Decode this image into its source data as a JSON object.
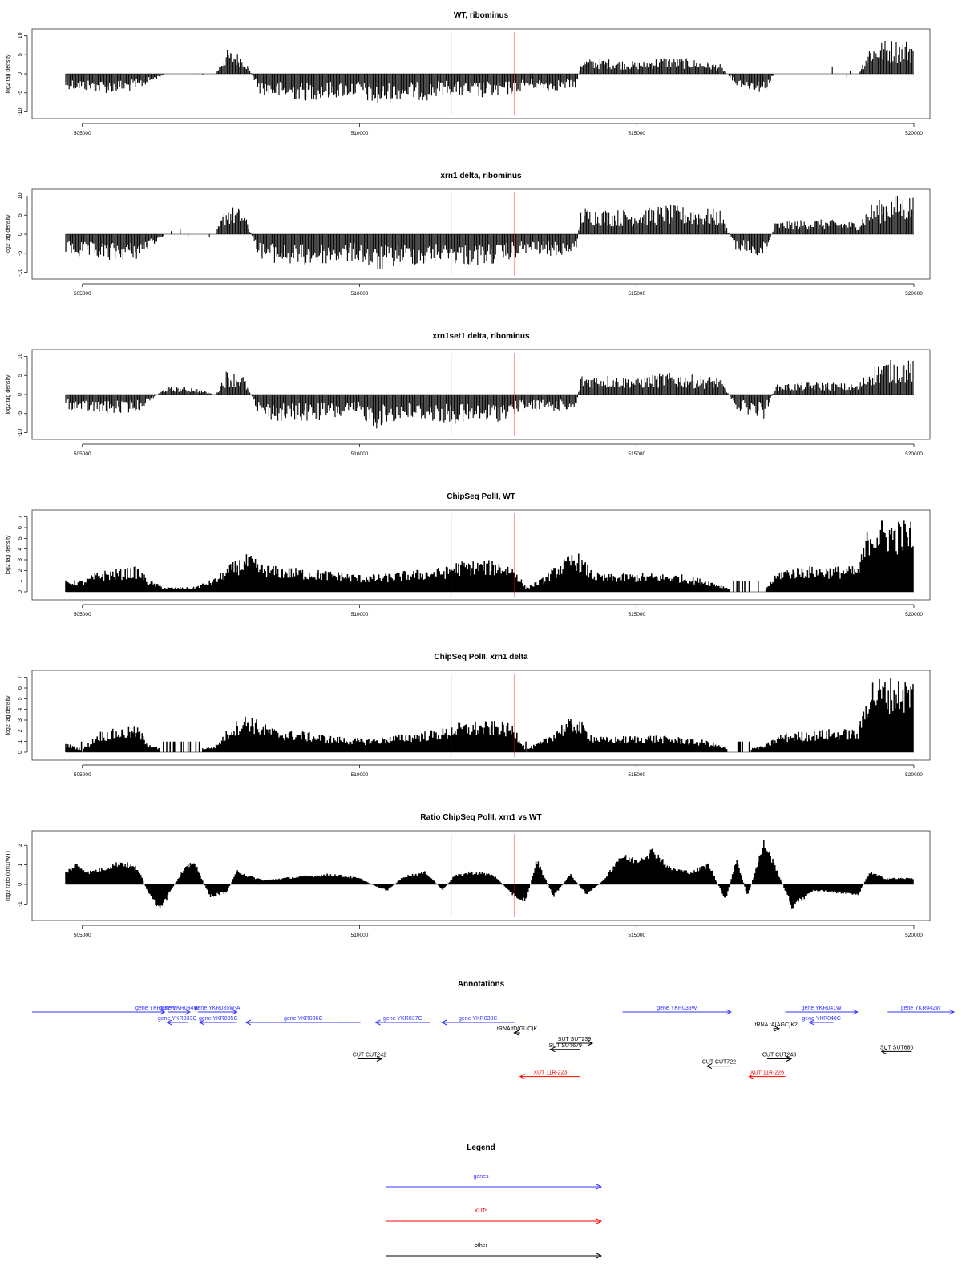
{
  "chart_data": [
    {
      "type": "area",
      "title": "WT, ribominus",
      "ylabel": "log2 tag density",
      "xlabel": "",
      "xlim": [
        504700,
        520000
      ],
      "ylim": [
        -10.5,
        10.5
      ],
      "yticks": [
        -10,
        -5,
        0,
        5,
        10
      ],
      "xticks": [
        505000,
        510000,
        515000,
        520000
      ],
      "vlines": [
        511650,
        512800
      ],
      "series": [
        {
          "x": [
            504700,
            505000,
            505500,
            506000,
            506050,
            506500,
            507000,
            507400,
            507600,
            507900,
            508200,
            508500,
            509000,
            509500,
            510000,
            510300,
            510500,
            510800,
            511200,
            511600,
            511700,
            512000,
            512500,
            512800,
            513000,
            513500,
            513900,
            514000,
            514500,
            515000,
            515500,
            516000,
            516500,
            516800,
            517000,
            517300,
            517500,
            518000,
            518500,
            519000,
            519200,
            519500,
            519700
          ],
          "y": [
            -3,
            -3.5,
            -4,
            -3.5,
            -3,
            0,
            0,
            0,
            5,
            4,
            -4,
            -5,
            -5.5,
            -5,
            -4.5,
            -7,
            -6,
            -5,
            -5.5,
            -4,
            -4.5,
            -5,
            -5,
            -4,
            -3,
            -3.5,
            -3,
            3,
            3,
            2.5,
            3.5,
            3,
            2,
            -2.5,
            -3,
            -4,
            0,
            0,
            0,
            0,
            6,
            7,
            7
          ]
        }
      ]
    },
    {
      "type": "area",
      "title": "xrn1 delta, ribominus",
      "ylabel": "log2 tag density",
      "xlabel": "",
      "xlim": [
        504700,
        520000
      ],
      "ylim": [
        -10.5,
        10.5
      ],
      "yticks": [
        -10,
        -5,
        0,
        5,
        10
      ],
      "xticks": [
        505000,
        510000,
        515000,
        520000
      ],
      "vlines": [
        511650,
        512800
      ],
      "series": [
        {
          "x": [
            504700,
            505000,
            505500,
            506000,
            506050,
            506500,
            507000,
            507400,
            507600,
            507900,
            508200,
            508500,
            509000,
            509500,
            510000,
            510300,
            510500,
            510800,
            511200,
            511600,
            511700,
            512000,
            512500,
            512800,
            513000,
            513500,
            513900,
            514000,
            514500,
            515000,
            515500,
            516000,
            516500,
            516800,
            517000,
            517300,
            517500,
            518000,
            518500,
            519000,
            519200,
            519500,
            519700
          ],
          "y": [
            -4,
            -5,
            -5.5,
            -5,
            -4.5,
            0,
            0,
            0,
            6,
            5,
            -5,
            -6,
            -6.5,
            -6,
            -5.5,
            -8,
            -7,
            -6,
            -6.5,
            -5,
            -6,
            -6.5,
            -6,
            -5,
            -4,
            -4.5,
            -4,
            5.5,
            5,
            5,
            6,
            5.5,
            5,
            -3.5,
            -4,
            -5,
            2.5,
            3,
            3,
            2.5,
            6,
            7.5,
            8
          ]
        }
      ]
    },
    {
      "type": "area",
      "title": "xrn1set1 delta, ribominus",
      "ylabel": "log2 tag density",
      "xlabel": "",
      "xlim": [
        504700,
        520000
      ],
      "ylim": [
        -10.5,
        10.5
      ],
      "yticks": [
        -10,
        -5,
        0,
        5,
        10
      ],
      "xticks": [
        505000,
        510000,
        515000,
        520000
      ],
      "vlines": [
        511650,
        512800
      ],
      "series": [
        {
          "x": [
            504700,
            505000,
            505500,
            506000,
            506050,
            506500,
            507000,
            507400,
            507600,
            507900,
            508200,
            508500,
            509000,
            509500,
            510000,
            510300,
            510500,
            510800,
            511200,
            511600,
            511700,
            512000,
            512500,
            512800,
            513000,
            513500,
            513900,
            514000,
            514500,
            515000,
            515500,
            516000,
            516500,
            516800,
            517000,
            517300,
            517500,
            518000,
            518500,
            519000,
            519200,
            519500,
            519700
          ],
          "y": [
            -3,
            -3.5,
            -4,
            -3.5,
            -3,
            1.5,
            1.5,
            0,
            5,
            4,
            -4.5,
            -5.5,
            -5.5,
            -5,
            -4.5,
            -7,
            -6,
            -5,
            -5.5,
            -6,
            -6,
            -6,
            -5.5,
            -4,
            -3,
            -3.5,
            -3,
            4,
            4,
            3.5,
            4.5,
            4,
            3.5,
            -3,
            -4,
            -5,
            2,
            2.5,
            2.5,
            2,
            5.5,
            7,
            7
          ]
        }
      ]
    },
    {
      "type": "area",
      "title": "ChipSeq PolII, WT",
      "ylabel": "log2 tag density",
      "xlabel": "",
      "xlim": [
        504700,
        520000
      ],
      "ylim": [
        -0.3,
        7.2
      ],
      "yticks": [
        0,
        1,
        2,
        3,
        4,
        5,
        6,
        7
      ],
      "xticks": [
        505000,
        510000,
        515000,
        520000
      ],
      "vlines": [
        511650,
        512800
      ],
      "series": [
        {
          "x": [
            504700,
            505000,
            505300,
            505700,
            506000,
            506200,
            506500,
            507000,
            507400,
            507700,
            508000,
            508200,
            508500,
            509000,
            509500,
            510000,
            510400,
            510800,
            511300,
            511600,
            511700,
            512000,
            512500,
            512800,
            513000,
            513300,
            513600,
            513900,
            514200,
            514400,
            514800,
            515300,
            515800,
            516300,
            516700,
            517000,
            517300,
            517600,
            518000,
            518500,
            519000,
            519200,
            519500,
            519700
          ],
          "y": [
            1,
            1,
            1.8,
            2,
            2.2,
            1,
            0.4,
            0.4,
            1.2,
            2.5,
            3.3,
            2.5,
            2.2,
            2,
            1.8,
            1.5,
            1.5,
            1.8,
            2,
            2.2,
            2.6,
            2.7,
            2.7,
            2.2,
            0.4,
            1.2,
            2.5,
            3.6,
            1.8,
            1.5,
            1.6,
            1.6,
            1.5,
            1,
            0.3,
            0.2,
            0.2,
            2,
            2.2,
            2.2,
            2.2,
            6.2,
            6.3,
            6.2
          ]
        }
      ]
    },
    {
      "type": "area",
      "title": "ChipSeq PolII, xrn1 delta",
      "ylabel": "log2 tag density",
      "xlabel": "",
      "xlim": [
        504700,
        520000
      ],
      "ylim": [
        -0.3,
        7.2
      ],
      "yticks": [
        0,
        1,
        2,
        3,
        4,
        5,
        6,
        7
      ],
      "xticks": [
        505000,
        510000,
        515000,
        520000
      ],
      "vlines": [
        511650,
        512800
      ],
      "series": [
        {
          "x": [
            504700,
            505000,
            505300,
            505700,
            506000,
            506200,
            506500,
            507000,
            507400,
            507700,
            508000,
            508200,
            508500,
            509000,
            509500,
            510000,
            510400,
            510800,
            511300,
            511600,
            511700,
            512000,
            512500,
            512800,
            513000,
            513300,
            513600,
            513900,
            514200,
            514400,
            514800,
            515300,
            515800,
            516300,
            516700,
            517000,
            517300,
            517600,
            518000,
            518500,
            519000,
            519200,
            519500,
            519700
          ],
          "y": [
            0.8,
            0.3,
            1.8,
            2.1,
            2.2,
            0.8,
            0.1,
            0.2,
            0.6,
            2.5,
            3.4,
            2.6,
            2,
            1.8,
            1.4,
            1.2,
            1.3,
            1.6,
            1.9,
            2.1,
            2.5,
            2.6,
            2.7,
            2.3,
            0.3,
            1,
            2.4,
            3.1,
            1.6,
            1.3,
            1.4,
            1.5,
            1.3,
            1,
            0.2,
            0.3,
            0.6,
            1.6,
            1.8,
            2,
            2,
            6.4,
            6.5,
            6.4
          ]
        }
      ]
    },
    {
      "type": "area",
      "title": "Ratio ChipSeq PolII, xrn1 vs WT",
      "ylabel": "log2 ratio (xrn1/WT)",
      "xlabel": "",
      "xlim": [
        504700,
        520000
      ],
      "ylim": [
        -1.6,
        2.5
      ],
      "yticks": [
        -1,
        0,
        1,
        2
      ],
      "xticks": [
        505000,
        510000,
        515000,
        520000
      ],
      "vlines": [
        511650,
        512800
      ],
      "series": [
        {
          "x": [
            504700,
            504900,
            505100,
            505400,
            505700,
            506000,
            506200,
            506400,
            506600,
            506800,
            507000,
            507300,
            507600,
            507800,
            508000,
            508300,
            508600,
            509000,
            509500,
            510000,
            510300,
            510500,
            510800,
            511200,
            511500,
            511700,
            512000,
            512400,
            512800,
            513000,
            513200,
            513500,
            513800,
            514100,
            514400,
            514700,
            515000,
            515300,
            515600,
            516000,
            516300,
            516600,
            516800,
            517000,
            517300,
            517500,
            517800,
            518200,
            518600,
            519000,
            519200,
            519500,
            519700
          ],
          "y": [
            0.6,
            1,
            0.6,
            0.8,
            1.1,
            0.8,
            -0.5,
            -1.3,
            -0.3,
            0.6,
            1.2,
            -0.6,
            -0.4,
            0.7,
            0.4,
            0.2,
            0.3,
            0.4,
            0.5,
            0.3,
            -0.1,
            -0.3,
            0.4,
            0.6,
            -0.3,
            0.4,
            0.6,
            0.5,
            -0.6,
            -0.8,
            1.2,
            -0.6,
            0.5,
            -0.5,
            0.2,
            1.4,
            1.2,
            1.7,
            0.8,
            0.6,
            1,
            -0.8,
            1.3,
            -0.6,
            2.1,
            0.9,
            -1.1,
            -0.3,
            -0.4,
            -0.5,
            0.6,
            0.3,
            0.3
          ]
        }
      ]
    },
    {
      "type": "annotation-track",
      "title": "Annotations",
      "xlim": [
        504700,
        520000
      ],
      "features": [
        {
          "label": "",
          "class": "gene",
          "x1": 504700,
          "x2": 506600,
          "strand": "none",
          "row": 1
        },
        {
          "label": "gene YKR032W",
          "class": "gene",
          "x1": 506600,
          "x2": 506900,
          "strand": "+",
          "row": 1
        },
        {
          "label": "gene YKR034W",
          "class": "gene",
          "x1": 506950,
          "x2": 507320,
          "strand": "+",
          "row": 1
        },
        {
          "label": "gene YKR033C",
          "class": "gene",
          "x1": 506940,
          "x2": 507280,
          "strand": "-",
          "row": 2
        },
        {
          "label": "gene YKR035W-A",
          "class": "gene",
          "x1": 507450,
          "x2": 508100,
          "strand": "+",
          "row": 1
        },
        {
          "label": "gene YKR035C",
          "class": "gene",
          "x1": 507480,
          "x2": 508100,
          "strand": "-",
          "row": 2
        },
        {
          "label": "gene YKR036C",
          "class": "gene",
          "x1": 508250,
          "x2": 510150,
          "strand": "-",
          "row": 2
        },
        {
          "label": "gene YKR037C",
          "class": "gene",
          "x1": 510400,
          "x2": 511300,
          "strand": "-",
          "row": 2
        },
        {
          "label": "gene YKR038C",
          "class": "gene",
          "x1": 511500,
          "x2": 512700,
          "strand": "-",
          "row": 2
        },
        {
          "label": "gene YKR039W",
          "class": "gene",
          "x1": 514500,
          "x2": 516300,
          "strand": "+",
          "row": 1
        },
        {
          "label": "gene YKR041W",
          "class": "gene",
          "x1": 517200,
          "x2": 518400,
          "strand": "+",
          "row": 1
        },
        {
          "label": "gene YKR040C",
          "class": "gene",
          "x1": 517600,
          "x2": 518000,
          "strand": "-",
          "row": 2
        },
        {
          "label": "gene YKR042W",
          "class": "gene",
          "x1": 518900,
          "x2": 520000,
          "strand": "+",
          "row": 1
        },
        {
          "label": "tRNA tD(GUC)K",
          "class": "other",
          "x1": 512700,
          "x2": 512800,
          "strand": "-",
          "row": 3
        },
        {
          "label": "tRNA tA(AGC)K2",
          "class": "other",
          "x1": 517000,
          "x2": 517100,
          "strand": "+",
          "row": 2.6
        },
        {
          "label": "SUT SUT239",
          "class": "other",
          "x1": 513400,
          "x2": 514000,
          "strand": "+",
          "row": 4
        },
        {
          "label": "SUT SUT679",
          "class": "other",
          "x1": 513300,
          "x2": 513800,
          "strand": "-",
          "row": 4.6
        },
        {
          "label": "CUT CUT242",
          "class": "other",
          "x1": 510100,
          "x2": 510500,
          "strand": "+",
          "row": 5.5
        },
        {
          "label": "CUT CUT722",
          "class": "other",
          "x1": 515900,
          "x2": 516300,
          "strand": "-",
          "row": 6.2
        },
        {
          "label": "CUT CUT243",
          "class": "other",
          "x1": 516900,
          "x2": 517300,
          "strand": "+",
          "row": 5.5
        },
        {
          "label": "SUT SUT680",
          "class": "other",
          "x1": 518800,
          "x2": 519300,
          "strand": "-",
          "row": 4.8
        },
        {
          "label": "XUT 11R-223",
          "class": "xut",
          "x1": 512800,
          "x2": 513800,
          "strand": "-",
          "row": 7.2
        },
        {
          "label": "XUT 11R-226",
          "class": "xut",
          "x1": 516600,
          "x2": 517200,
          "strand": "-",
          "row": 7.2
        }
      ]
    },
    {
      "type": "legend",
      "title": "Legend",
      "items": [
        {
          "label": "genes",
          "color": "#3333ff"
        },
        {
          "label": "XUTs",
          "color": "#ff0000"
        },
        {
          "label": "other",
          "color": "#000000"
        }
      ]
    }
  ],
  "colors": {
    "signal": "#000000",
    "vline": "#ff0000",
    "gene": "#3333ff",
    "xut": "#ff0000",
    "other": "#000000",
    "frame": "#333333"
  }
}
